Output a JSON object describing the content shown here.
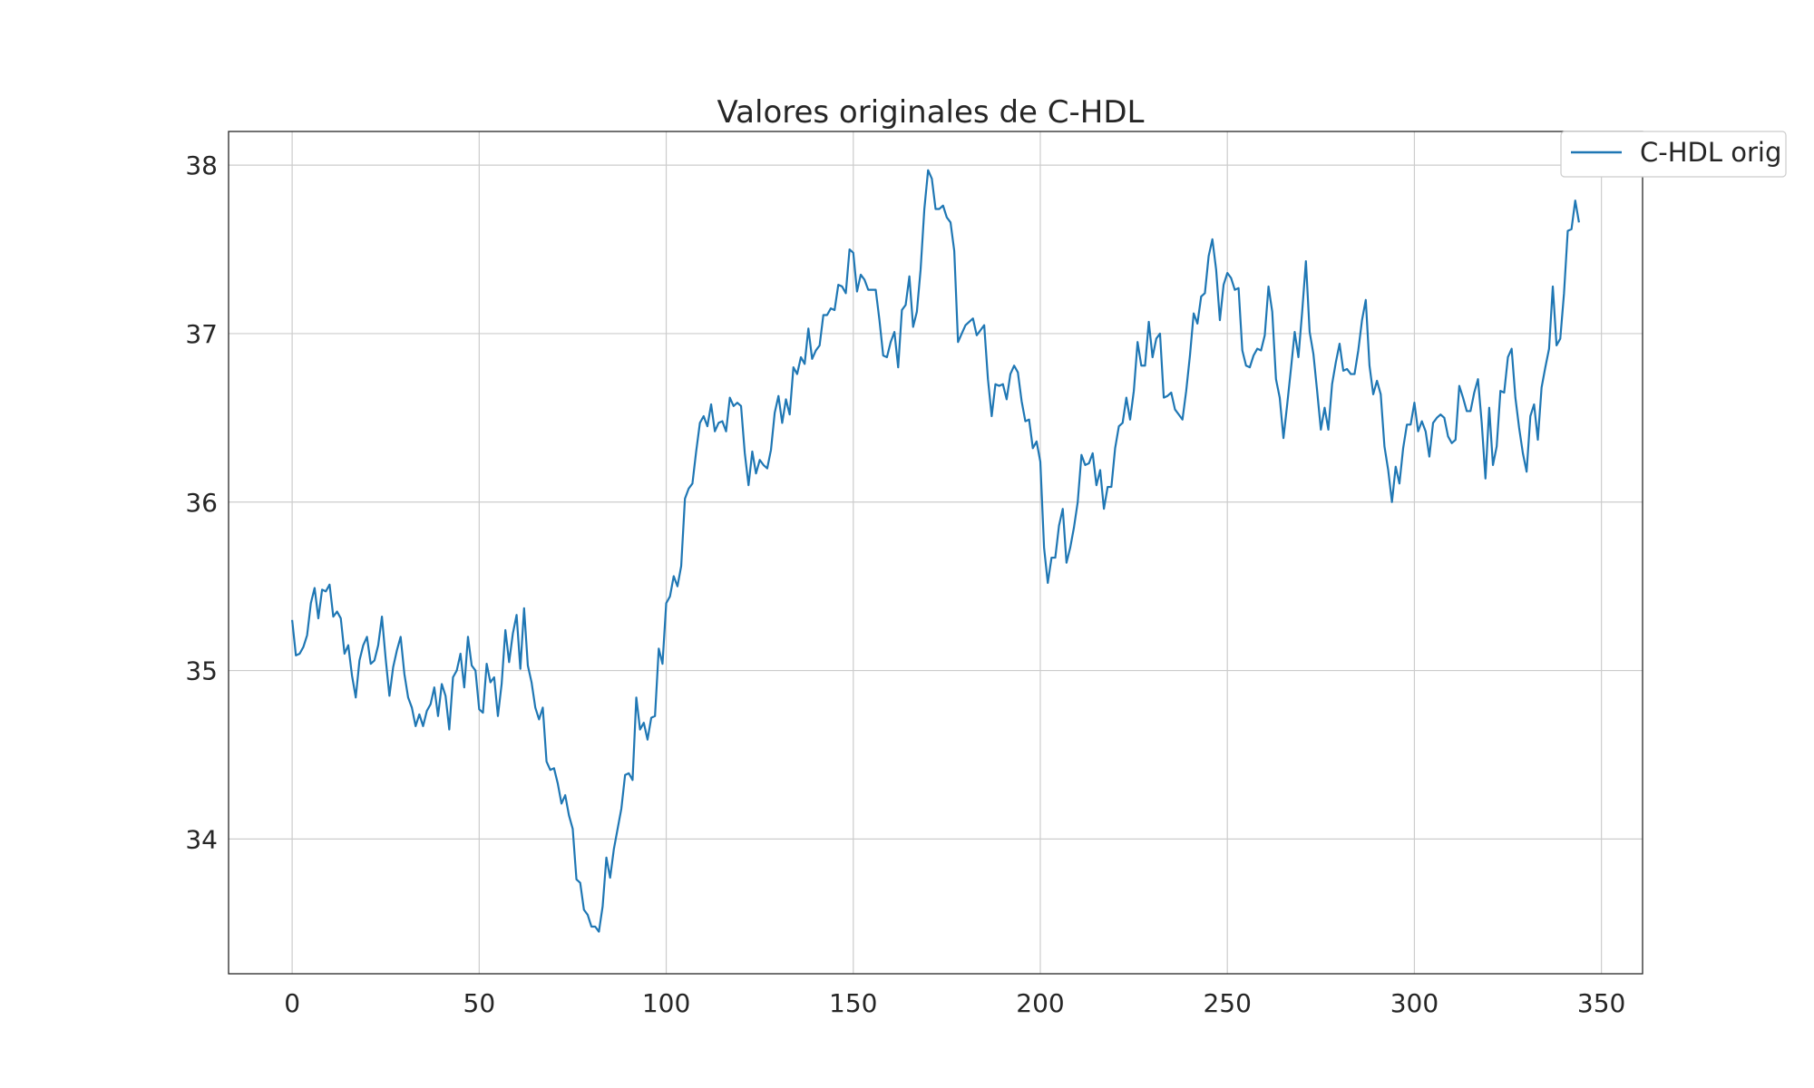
{
  "chart_data": {
    "type": "line",
    "title": "Valores originales de C-HDL",
    "xlabel": "",
    "ylabel": "",
    "xlim": [
      -17,
      361
    ],
    "ylim": [
      33.2,
      38.2
    ],
    "xticks": [
      0,
      50,
      100,
      150,
      200,
      250,
      300,
      350
    ],
    "yticks": [
      34,
      35,
      36,
      37,
      38
    ],
    "grid": true,
    "legend_position": "top-right",
    "series": [
      {
        "name": "C-HDL orig",
        "color": "#1f77b4",
        "x_start": 0,
        "x_step": 1,
        "values": [
          35.3,
          35.09,
          35.1,
          35.14,
          35.21,
          35.4,
          35.49,
          35.31,
          35.48,
          35.47,
          35.51,
          35.32,
          35.35,
          35.31,
          35.1,
          35.15,
          34.97,
          34.84,
          35.06,
          35.15,
          35.2,
          35.04,
          35.06,
          35.15,
          35.32,
          35.07,
          34.85,
          35.02,
          35.12,
          35.2,
          34.98,
          34.84,
          34.78,
          34.67,
          34.74,
          34.67,
          34.76,
          34.8,
          34.9,
          34.73,
          34.92,
          34.85,
          34.65,
          34.96,
          35.0,
          35.1,
          34.9,
          35.2,
          35.03,
          35.0,
          34.77,
          34.75,
          35.04,
          34.93,
          34.96,
          34.73,
          34.92,
          35.24,
          35.05,
          35.22,
          35.33,
          35.01,
          35.37,
          35.03,
          34.93,
          34.78,
          34.71,
          34.78,
          34.46,
          34.41,
          34.42,
          34.33,
          34.21,
          34.26,
          34.14,
          34.06,
          33.76,
          33.74,
          33.58,
          33.55,
          33.48,
          33.48,
          33.45,
          33.6,
          33.89,
          33.77,
          33.94,
          34.06,
          34.18,
          34.38,
          34.39,
          34.35,
          34.84,
          34.65,
          34.69,
          34.59,
          34.72,
          34.73,
          35.13,
          35.04,
          35.4,
          35.44,
          35.56,
          35.5,
          35.62,
          36.02,
          36.08,
          36.11,
          36.3,
          36.47,
          36.51,
          36.45,
          36.58,
          36.42,
          36.47,
          36.48,
          36.42,
          36.62,
          36.57,
          36.59,
          36.57,
          36.29,
          36.1,
          36.3,
          36.17,
          36.25,
          36.22,
          36.2,
          36.31,
          36.53,
          36.63,
          36.47,
          36.61,
          36.52,
          36.8,
          36.76,
          36.86,
          36.82,
          37.03,
          36.85,
          36.9,
          36.93,
          37.11,
          37.11,
          37.15,
          37.14,
          37.29,
          37.28,
          37.24,
          37.5,
          37.48,
          37.25,
          37.35,
          37.32,
          37.26,
          37.26,
          37.26,
          37.08,
          36.87,
          36.86,
          36.95,
          37.01,
          36.8,
          37.14,
          37.17,
          37.34,
          37.04,
          37.13,
          37.38,
          37.74,
          37.97,
          37.92,
          37.74,
          37.74,
          37.76,
          37.69,
          37.66,
          37.49,
          36.95,
          37.0,
          37.05,
          37.07,
          37.09,
          36.99,
          37.02,
          37.05,
          36.73,
          36.51,
          36.7,
          36.69,
          36.7,
          36.61,
          36.76,
          36.81,
          36.77,
          36.6,
          36.48,
          36.49,
          36.32,
          36.36,
          36.24,
          35.73,
          35.52,
          35.67,
          35.67,
          35.86,
          35.96,
          35.64,
          35.73,
          35.85,
          36.0,
          36.28,
          36.22,
          36.23,
          36.29,
          36.1,
          36.19,
          35.96,
          36.09,
          36.09,
          36.32,
          36.45,
          36.47,
          36.62,
          36.49,
          36.66,
          36.95,
          36.81,
          36.81,
          37.07,
          36.86,
          36.97,
          37.0,
          36.62,
          36.63,
          36.65,
          36.55,
          36.52,
          36.49,
          36.66,
          36.87,
          37.12,
          37.06,
          37.22,
          37.24,
          37.46,
          37.56,
          37.38,
          37.08,
          37.29,
          37.36,
          37.33,
          37.26,
          37.27,
          36.9,
          36.81,
          36.8,
          36.87,
          36.91,
          36.9,
          36.99,
          37.28,
          37.13,
          36.73,
          36.62,
          36.38,
          36.58,
          36.79,
          37.01,
          36.86,
          37.13,
          37.43,
          37.01,
          36.88,
          36.66,
          36.43,
          36.56,
          36.43,
          36.7,
          36.83,
          36.94,
          36.78,
          36.79,
          36.76,
          36.76,
          36.9,
          37.08,
          37.2,
          36.81,
          36.64,
          36.72,
          36.64,
          36.33,
          36.19,
          36.0,
          36.21,
          36.11,
          36.32,
          36.46,
          36.46,
          36.59,
          36.42,
          36.48,
          36.42,
          36.27,
          36.47,
          36.5,
          36.52,
          36.5,
          36.39,
          36.35,
          36.37,
          36.69,
          36.62,
          36.54,
          36.54,
          36.65,
          36.73,
          36.47,
          36.14,
          36.56,
          36.22,
          36.33,
          36.66,
          36.65,
          36.86,
          36.91,
          36.62,
          36.44,
          36.29,
          36.18,
          36.51,
          36.58,
          36.37,
          36.68,
          36.8,
          36.91,
          37.28,
          36.93,
          36.97,
          37.24,
          37.61,
          37.62,
          37.79,
          37.66
        ]
      }
    ]
  }
}
